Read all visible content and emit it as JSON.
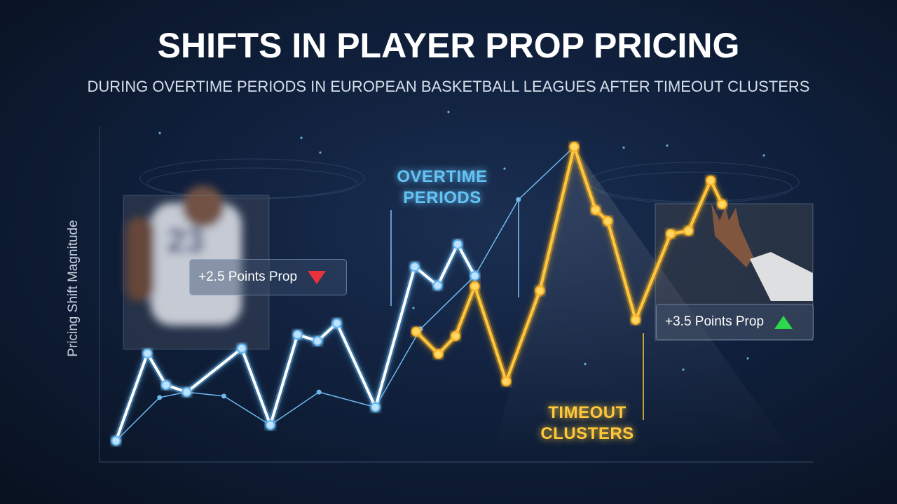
{
  "chart_data": {
    "type": "line",
    "title": "SHIFTS IN PLAYER PROP PRICING",
    "subtitle": "DURING OVERTIME PERIODS IN EUROPEAN BASKETBALL LEAGUES AFTER TIMEOUT CLUSTERS",
    "y_label": "Pricing Shift Magnitude",
    "xlim": [
      0,
      100
    ],
    "ylim": [
      0,
      100
    ],
    "series": [
      {
        "name": "OVERTIME PERIODS",
        "color": "#ffffff",
        "x": [
          2.5,
          6.9,
          9.5,
          12.4,
          20.1,
          24.1,
          27.9,
          30.7,
          33.4,
          38.8,
          44.3,
          47.5,
          50.3,
          52.7
        ],
        "values": [
          6.3,
          32.3,
          22.9,
          20.8,
          33.8,
          11.0,
          37.9,
          36.0,
          41.3,
          16.3,
          58.1,
          52.5,
          64.8,
          55.4
        ]
      },
      {
        "name": "TIMEOUT CLUSTERS",
        "color": "#ffc83a",
        "x": [
          44.5,
          47.6,
          50.0,
          52.7,
          57.1,
          61.8,
          66.6,
          69.6,
          71.3,
          75.2,
          80.1,
          82.6,
          85.7,
          87.3
        ],
        "values": [
          38.8,
          32.1,
          37.5,
          52.3,
          24.0,
          51.0,
          93.8,
          75.0,
          71.7,
          42.3,
          67.9,
          68.8,
          83.8,
          76.7
        ]
      },
      {
        "color": "#6fb8ee",
        "x": [
          2.5,
          8.6,
          12.3,
          17.6,
          24.1,
          30.9,
          38.8,
          45.1,
          52.7,
          58.8,
          66.6
        ],
        "values": [
          6.3,
          19.2,
          20.8,
          19.6,
          11.0,
          20.8,
          16.3,
          39.6,
          55.4,
          78.1,
          93.8
        ]
      }
    ],
    "callouts": [
      {
        "text": "+2.5 Points Prop",
        "direction": "down",
        "color": "#e8323c"
      },
      {
        "text": "+3.5 Points Prop",
        "direction": "up",
        "color": "#2bd94a"
      }
    ]
  }
}
